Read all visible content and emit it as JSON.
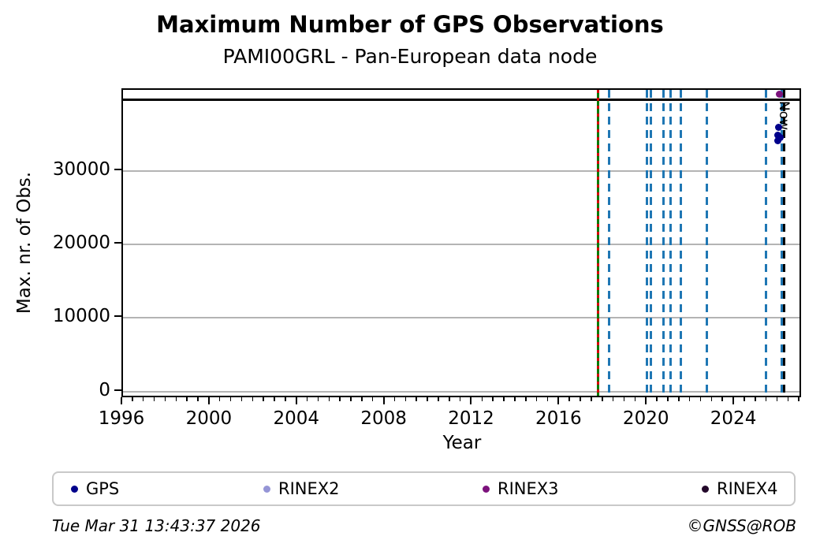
{
  "title": "Maximum Number of GPS Observations",
  "subtitle": "PAMI00GRL - Pan-European data node",
  "footer": {
    "timestamp": "Tue Mar 31 13:43:37 2026",
    "credit": "©GNSS@ROB"
  },
  "colors": {
    "event_line_blue": "#1f77b4",
    "event_line_green": "#007a00",
    "event_line_red": "#d40000",
    "now_line": "#000000",
    "max_line": "#000000",
    "grid": "#b4b4b4"
  },
  "legend": {
    "entries": [
      {
        "label": "GPS",
        "color": "#00008B"
      },
      {
        "label": "RINEX2",
        "color": "#9595D6"
      },
      {
        "label": "RINEX3",
        "color": "#7C127C"
      },
      {
        "label": "RINEX4",
        "color": "#23082A"
      }
    ]
  },
  "chart_data": {
    "type": "scatter",
    "title": "Maximum Number of GPS Observations",
    "subtitle": "PAMI00GRL - Pan-European data node",
    "xlabel": "Year",
    "ylabel": "Max. nr. of Obs.",
    "xlim": [
      1996,
      2027.1
    ],
    "ylim": [
      -1000,
      41000
    ],
    "xticks": [
      1996,
      2000,
      2004,
      2008,
      2012,
      2016,
      2020,
      2024
    ],
    "x_minor_step": 0.5,
    "yticks": [
      0,
      10000,
      20000,
      30000
    ],
    "grid": "horizontal-at-yticks",
    "max_reference_line_y": 39700,
    "now_marker": {
      "x": 2026.25,
      "label": "Now"
    },
    "event_lines_green_red_dashed_x": [
      2017.72
    ],
    "event_lines_blue_dashed_x": [
      2018.26,
      2019.96,
      2020.14,
      2020.75,
      2021.04,
      2021.54,
      2022.7,
      2025.44,
      2026.13
    ],
    "series": [
      {
        "name": "GPS",
        "color": "#00008B",
        "points": [
          [
            2026.0,
            35900
          ],
          [
            2025.96,
            34800
          ],
          [
            2026.06,
            34500
          ],
          [
            2025.96,
            34100
          ]
        ]
      },
      {
        "name": "RINEX2",
        "color": "#9595D6",
        "points": []
      },
      {
        "name": "RINEX3",
        "color": "#7C127C",
        "points": [
          [
            2026.02,
            40400
          ]
        ]
      },
      {
        "name": "RINEX4",
        "color": "#23082A",
        "points": []
      }
    ],
    "legend_position": "bottom"
  }
}
